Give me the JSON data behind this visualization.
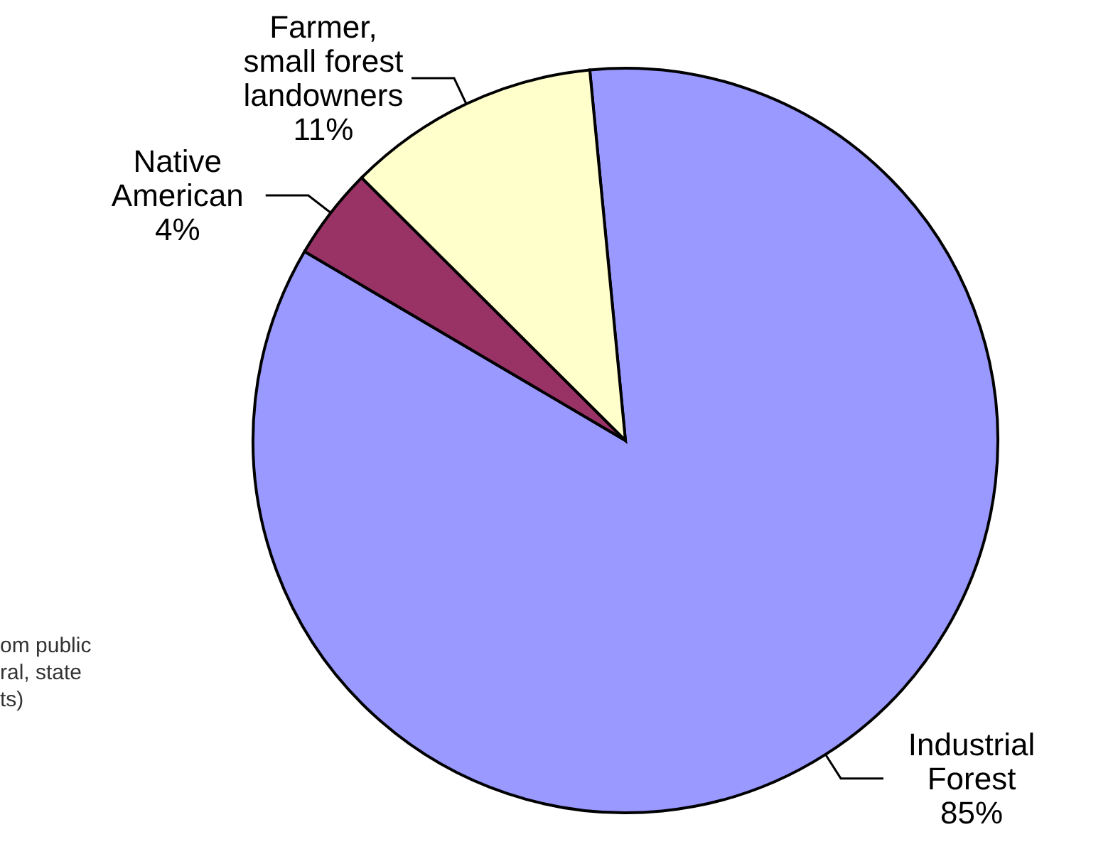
{
  "chart_data": {
    "type": "pie",
    "categories": [
      "Industrial Forest",
      "Native American",
      "Farmer, small forest landowners"
    ],
    "values": [
      85,
      4,
      11
    ],
    "colors": [
      "#9999ff",
      "#993366",
      "#ffffcc"
    ],
    "value_labels": [
      "85%",
      "4%",
      "11%"
    ],
    "annotations": [
      "om public\nral, state\nts)"
    ]
  }
}
